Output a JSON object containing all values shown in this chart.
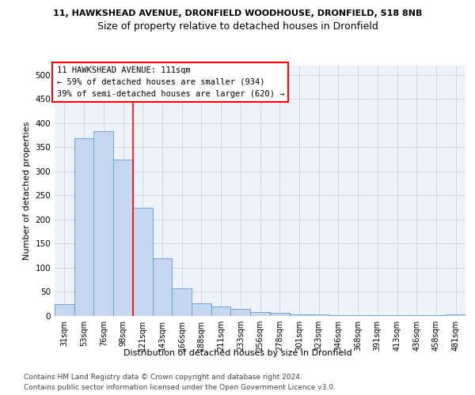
{
  "title_line1": "11, HAWKSHEAD AVENUE, DRONFIELD WOODHOUSE, DRONFIELD, S18 8NB",
  "title_line2": "Size of property relative to detached houses in Dronfield",
  "xlabel": "Distribution of detached houses by size in Dronfield",
  "ylabel": "Number of detached properties",
  "categories": [
    "31sqm",
    "53sqm",
    "76sqm",
    "98sqm",
    "121sqm",
    "143sqm",
    "166sqm",
    "188sqm",
    "211sqm",
    "233sqm",
    "256sqm",
    "278sqm",
    "301sqm",
    "323sqm",
    "346sqm",
    "368sqm",
    "391sqm",
    "413sqm",
    "436sqm",
    "458sqm",
    "481sqm"
  ],
  "values": [
    25,
    368,
    383,
    325,
    225,
    120,
    57,
    26,
    20,
    15,
    8,
    6,
    3,
    3,
    2,
    2,
    1,
    1,
    1,
    1,
    3
  ],
  "bar_color": "#c5d8f0",
  "bar_edge_color": "#5b9bd5",
  "reference_line_x": 3.5,
  "reference_line_color": "red",
  "annotation_text": "11 HAWKSHEAD AVENUE: 111sqm\n← 59% of detached houses are smaller (934)\n39% of semi-detached houses are larger (620) →",
  "annotation_box_color": "white",
  "annotation_box_edge_color": "red",
  "ylim": [
    0,
    520
  ],
  "yticks": [
    0,
    50,
    100,
    150,
    200,
    250,
    300,
    350,
    400,
    450,
    500
  ],
  "grid_color": "#d0d0d0",
  "background_color": "#eef3fb",
  "footer_line1": "Contains HM Land Registry data © Crown copyright and database right 2024.",
  "footer_line2": "Contains public sector information licensed under the Open Government Licence v3.0.",
  "title_fontsize": 8,
  "subtitle_fontsize": 9,
  "axis_label_fontsize": 8,
  "tick_fontsize": 7,
  "annotation_fontsize": 7.5,
  "footer_fontsize": 6.5
}
